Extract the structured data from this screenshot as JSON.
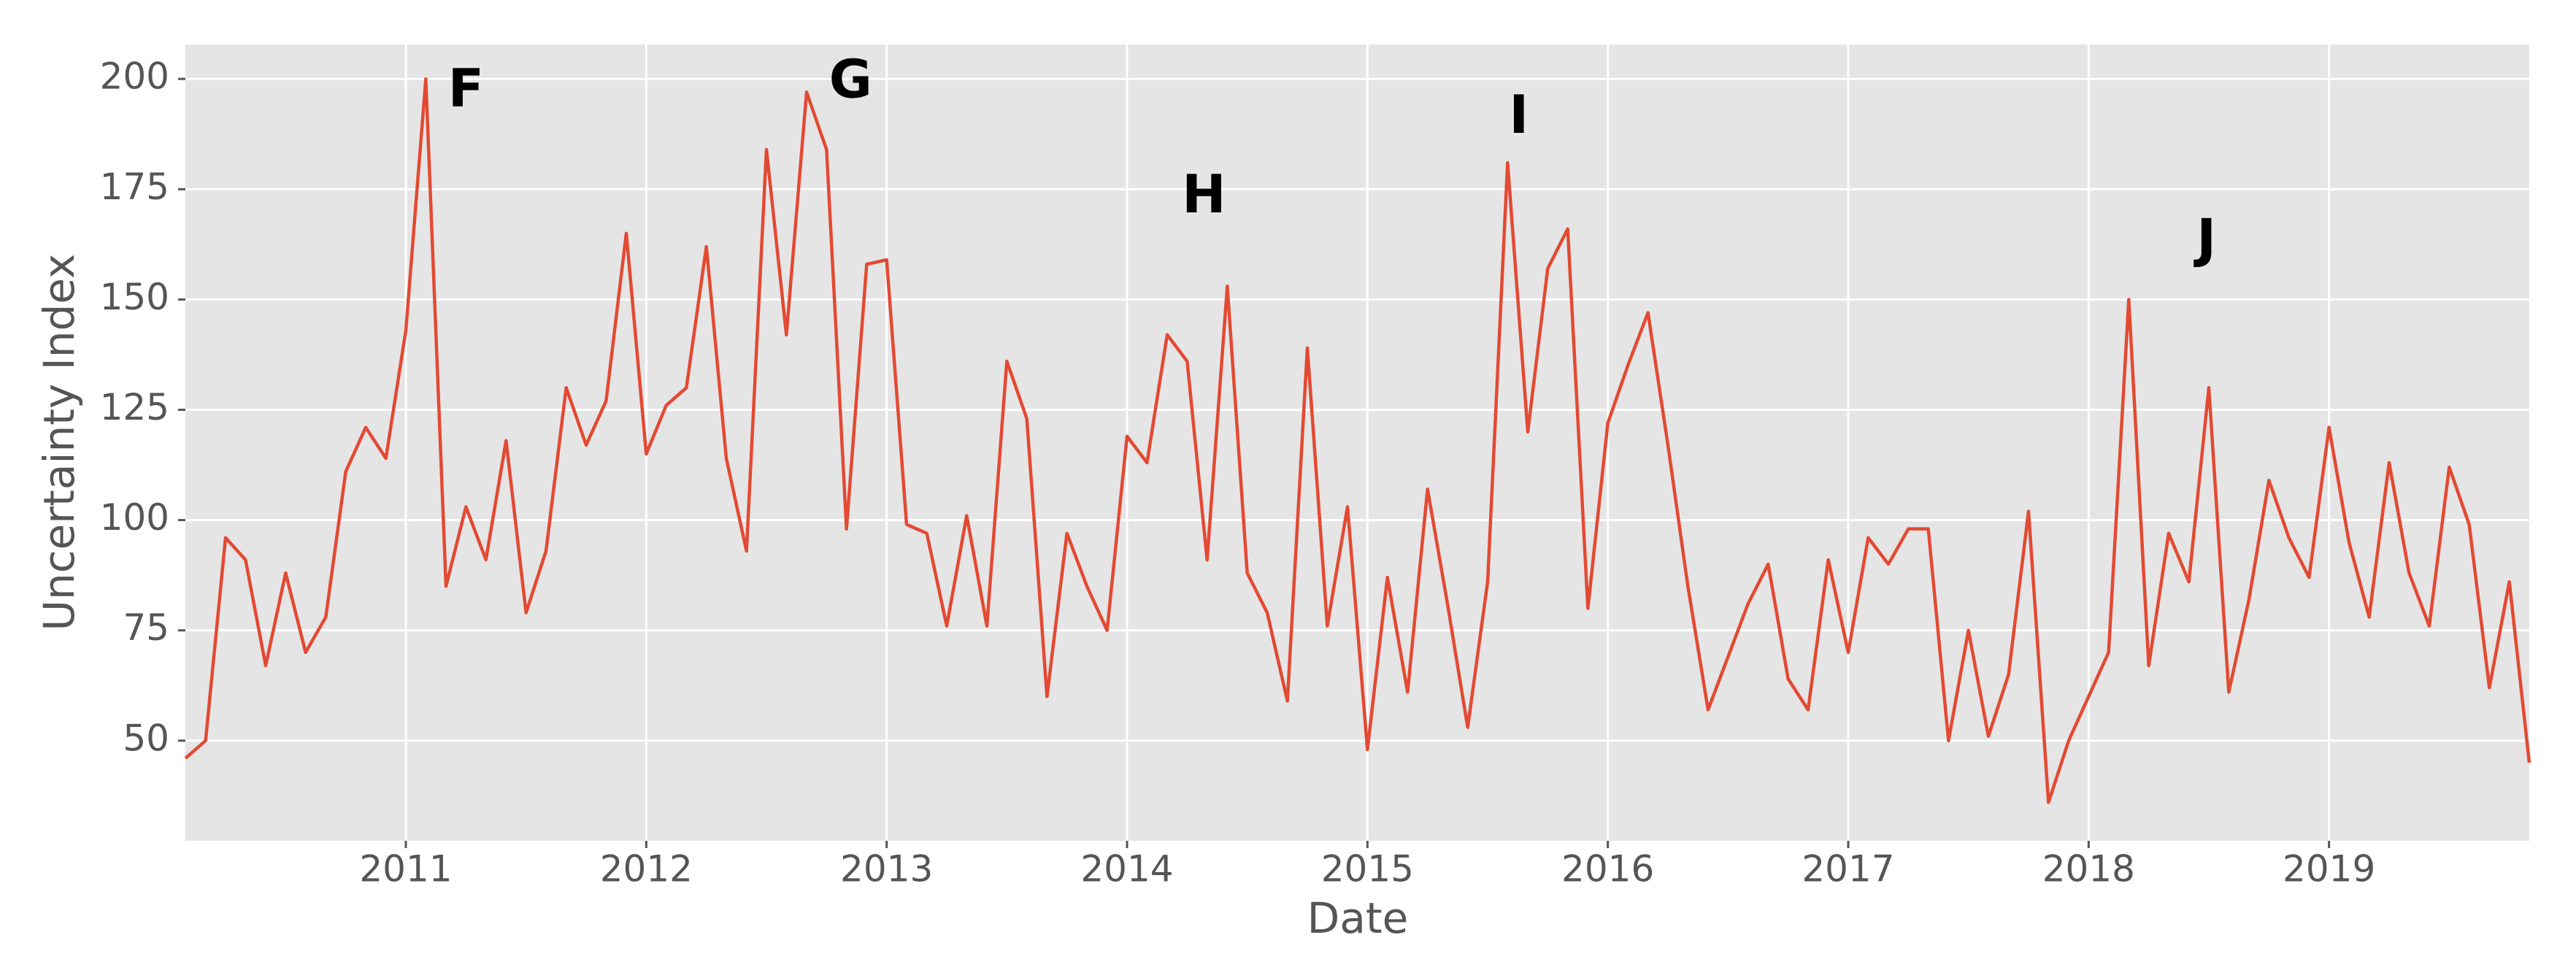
{
  "chart_data": {
    "type": "line",
    "xlabel": "Date",
    "ylabel": "Uncertainty Index",
    "color": "#e24a33",
    "grid": true,
    "xlim": [
      2010.083,
      2019.833
    ],
    "ylim": [
      27.3,
      207.8
    ],
    "xticks": [
      2011,
      2012,
      2013,
      2014,
      2015,
      2016,
      2017,
      2018,
      2019
    ],
    "yticks": [
      50,
      75,
      100,
      125,
      150,
      175,
      200
    ],
    "x": [
      2010.083,
      2010.167,
      2010.25,
      2010.333,
      2010.417,
      2010.5,
      2010.583,
      2010.667,
      2010.75,
      2010.833,
      2010.917,
      2011,
      2011.083,
      2011.167,
      2011.25,
      2011.333,
      2011.417,
      2011.5,
      2011.583,
      2011.667,
      2011.75,
      2011.833,
      2011.917,
      2012,
      2012.083,
      2012.167,
      2012.25,
      2012.333,
      2012.417,
      2012.5,
      2012.583,
      2012.667,
      2012.75,
      2012.833,
      2012.917,
      2013,
      2013.083,
      2013.167,
      2013.25,
      2013.333,
      2013.417,
      2013.5,
      2013.583,
      2013.667,
      2013.75,
      2013.833,
      2013.917,
      2014,
      2014.083,
      2014.167,
      2014.25,
      2014.333,
      2014.417,
      2014.5,
      2014.583,
      2014.667,
      2014.75,
      2014.833,
      2014.917,
      2015,
      2015.083,
      2015.167,
      2015.25,
      2015.333,
      2015.417,
      2015.5,
      2015.583,
      2015.667,
      2015.75,
      2015.833,
      2015.917,
      2016,
      2016.083,
      2016.167,
      2016.25,
      2016.333,
      2016.417,
      2016.5,
      2016.583,
      2016.667,
      2016.75,
      2016.833,
      2016.917,
      2017,
      2017.083,
      2017.167,
      2017.25,
      2017.333,
      2017.417,
      2017.5,
      2017.583,
      2017.667,
      2017.75,
      2017.833,
      2017.917,
      2018,
      2018.083,
      2018.167,
      2018.25,
      2018.333,
      2018.417,
      2018.5,
      2018.583,
      2018.667,
      2018.75,
      2018.833,
      2018.917,
      2019,
      2019.083,
      2019.167,
      2019.25,
      2019.333,
      2019.417,
      2019.5,
      2019.583,
      2019.667,
      2019.75,
      2019.833
    ],
    "values": [
      46,
      50,
      96,
      91,
      67,
      88,
      70,
      78,
      111,
      121,
      114,
      143,
      200,
      85,
      103,
      91,
      118,
      79,
      93,
      130,
      117,
      127,
      165,
      115,
      126,
      130,
      162,
      114,
      93,
      184,
      142,
      197,
      184,
      98,
      158,
      159,
      99,
      97,
      76,
      101,
      76,
      136,
      123,
      60,
      97,
      85,
      75,
      119,
      113,
      142,
      136,
      91,
      153,
      88,
      79,
      59,
      139,
      76,
      103,
      48,
      87,
      61,
      107,
      81,
      53,
      86,
      181,
      120,
      157,
      166,
      80,
      122,
      135,
      147,
      117,
      85,
      57,
      69,
      81,
      90,
      64,
      57,
      91,
      70,
      96,
      90,
      98,
      98,
      50,
      75,
      51,
      65,
      102,
      36,
      50,
      60,
      70,
      150,
      67,
      97,
      86,
      130,
      61,
      82,
      109,
      96,
      87,
      121,
      95,
      78,
      113,
      88,
      76,
      112,
      99,
      62,
      86,
      45
    ],
    "annotations": [
      {
        "text": "F",
        "x": 2011.25,
        "y": 197
      },
      {
        "text": "G",
        "x": 2012.85,
        "y": 199
      },
      {
        "text": "H",
        "x": 2014.32,
        "y": 173
      },
      {
        "text": "I",
        "x": 2015.63,
        "y": 191
      },
      {
        "text": "J",
        "x": 2018.49,
        "y": 163
      }
    ]
  }
}
